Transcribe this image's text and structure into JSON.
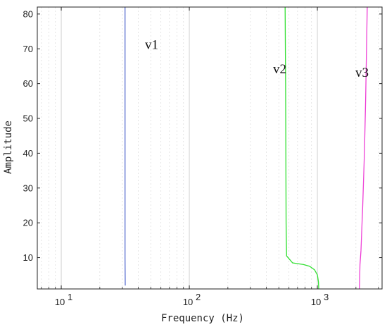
{
  "chart_data": {
    "type": "line",
    "title": "",
    "xlabel": "Frequency (Hz)",
    "ylabel": "Amplitude",
    "xscale": "log",
    "xlim": [
      6.5,
      3200
    ],
    "ylim": [
      1,
      82
    ],
    "grid": true,
    "x_ticks": [
      {
        "value": 10,
        "base": "10",
        "exp": "1"
      },
      {
        "value": 100,
        "base": "10",
        "exp": "2"
      },
      {
        "value": 1000,
        "base": "10",
        "exp": "3"
      }
    ],
    "y_ticks": [
      10,
      20,
      30,
      40,
      50,
      60,
      70,
      80
    ],
    "colors": {
      "v1": "#5a6fd0",
      "v2": "#33e033",
      "v3": "#ee3fd6",
      "grid": "#d9d9d9",
      "axis": "#222222"
    },
    "series": [
      {
        "name": "v1",
        "color": "#5a6fd0",
        "label_pos": {
          "x": 45,
          "y": 70
        },
        "points": [
          [
            31.5,
            82
          ],
          [
            31.5,
            40
          ],
          [
            31.5,
            10
          ],
          [
            31.6,
            2
          ]
        ]
      },
      {
        "name": "v2",
        "color": "#33e033",
        "label_pos": {
          "x": 450,
          "y": 63
        },
        "points": [
          [
            560,
            82
          ],
          [
            565,
            60
          ],
          [
            570,
            20
          ],
          [
            575,
            10.5
          ],
          [
            640,
            8.5
          ],
          [
            780,
            8
          ],
          [
            870,
            7.5
          ],
          [
            950,
            6.5
          ],
          [
            1000,
            5
          ],
          [
            1020,
            3
          ],
          [
            1025,
            1
          ]
        ]
      },
      {
        "name": "v3",
        "color": "#ee3fd6",
        "label_pos": {
          "x": 1980,
          "y": 62
        },
        "points": [
          [
            2450,
            82
          ],
          [
            2420,
            70
          ],
          [
            2380,
            55
          ],
          [
            2330,
            40
          ],
          [
            2260,
            25
          ],
          [
            2190,
            12
          ],
          [
            2150,
            8
          ],
          [
            2130,
            1
          ]
        ]
      }
    ]
  }
}
